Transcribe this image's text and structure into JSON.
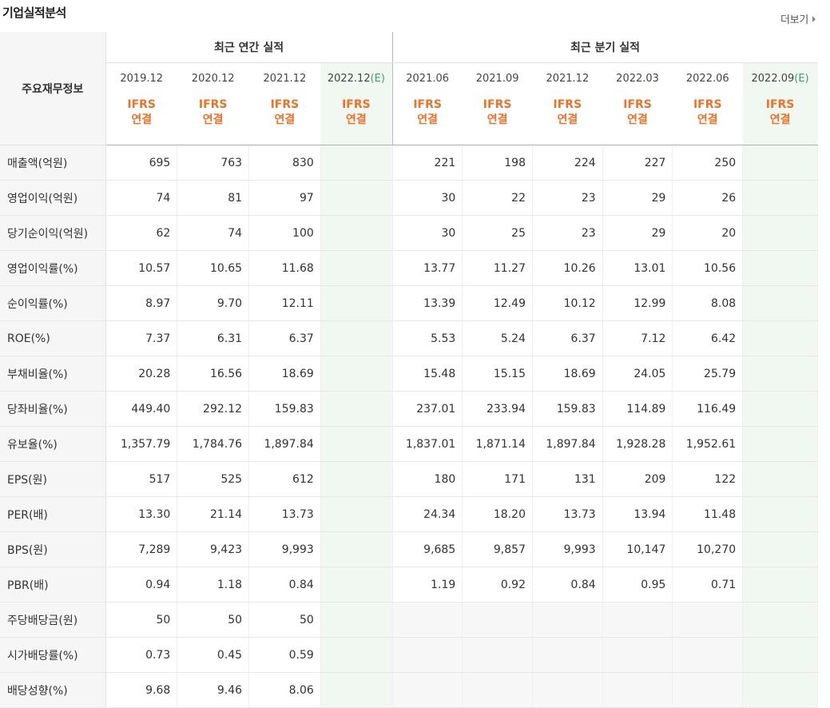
{
  "header": {
    "title": "기업실적분석",
    "more_label": "더보기"
  },
  "table": {
    "corner_label": "주요재무정보",
    "annual_group": "최근 연간 실적",
    "quarter_group": "최근 분기 실적",
    "periods": [
      "2019.12",
      "2020.12",
      "2021.12",
      "2022.12",
      "2021.06",
      "2021.09",
      "2021.12",
      "2022.03",
      "2022.06",
      "2022.09"
    ],
    "estimate_mark": "(E)",
    "ifrs_top": "IFRS",
    "ifrs_bottom": "연결",
    "rows": [
      {
        "label": "매출액(억원)",
        "values": [
          "695",
          "763",
          "830",
          "",
          "221",
          "198",
          "224",
          "227",
          "250",
          ""
        ]
      },
      {
        "label": "영업이익(억원)",
        "values": [
          "74",
          "81",
          "97",
          "",
          "30",
          "22",
          "23",
          "29",
          "26",
          ""
        ]
      },
      {
        "label": "당기순이익(억원)",
        "values": [
          "62",
          "74",
          "100",
          "",
          "30",
          "25",
          "23",
          "29",
          "20",
          ""
        ]
      },
      {
        "label": "영업이익률(%)",
        "values": [
          "10.57",
          "10.65",
          "11.68",
          "",
          "13.77",
          "11.27",
          "10.26",
          "13.01",
          "10.56",
          ""
        ]
      },
      {
        "label": "순이익률(%)",
        "values": [
          "8.97",
          "9.70",
          "12.11",
          "",
          "13.39",
          "12.49",
          "10.12",
          "12.99",
          "8.08",
          ""
        ]
      },
      {
        "label": "ROE(%)",
        "values": [
          "7.37",
          "6.31",
          "6.37",
          "",
          "5.53",
          "5.24",
          "6.37",
          "7.12",
          "6.42",
          ""
        ]
      },
      {
        "label": "부채비율(%)",
        "values": [
          "20.28",
          "16.56",
          "18.69",
          "",
          "15.48",
          "15.15",
          "18.69",
          "24.05",
          "25.79",
          ""
        ]
      },
      {
        "label": "당좌비율(%)",
        "values": [
          "449.40",
          "292.12",
          "159.83",
          "",
          "237.01",
          "233.94",
          "159.83",
          "114.89",
          "116.49",
          ""
        ]
      },
      {
        "label": "유보율(%)",
        "values": [
          "1,357.79",
          "1,784.76",
          "1,897.84",
          "",
          "1,837.01",
          "1,871.14",
          "1,897.84",
          "1,928.28",
          "1,952.61",
          ""
        ]
      },
      {
        "label": "EPS(원)",
        "values": [
          "517",
          "525",
          "612",
          "",
          "180",
          "171",
          "131",
          "209",
          "122",
          ""
        ]
      },
      {
        "label": "PER(배)",
        "values": [
          "13.30",
          "21.14",
          "13.73",
          "",
          "24.34",
          "18.20",
          "13.73",
          "13.94",
          "11.48",
          ""
        ]
      },
      {
        "label": "BPS(원)",
        "values": [
          "7,289",
          "9,423",
          "9,993",
          "",
          "9,685",
          "9,857",
          "9,993",
          "10,147",
          "10,270",
          ""
        ]
      },
      {
        "label": "PBR(배)",
        "values": [
          "0.94",
          "1.18",
          "0.84",
          "",
          "1.19",
          "0.92",
          "0.84",
          "0.95",
          "0.71",
          ""
        ]
      },
      {
        "label": "주당배당금(원)",
        "values": [
          "50",
          "50",
          "50",
          "",
          "",
          "",
          "",
          "",
          "",
          ""
        ]
      },
      {
        "label": "시가배당률(%)",
        "values": [
          "0.73",
          "0.45",
          "0.59",
          "",
          "",
          "",
          "",
          "",
          "",
          ""
        ]
      },
      {
        "label": "배당성향(%)",
        "values": [
          "9.68",
          "9.46",
          "8.06",
          "",
          "",
          "",
          "",
          "",
          "",
          ""
        ]
      }
    ]
  }
}
